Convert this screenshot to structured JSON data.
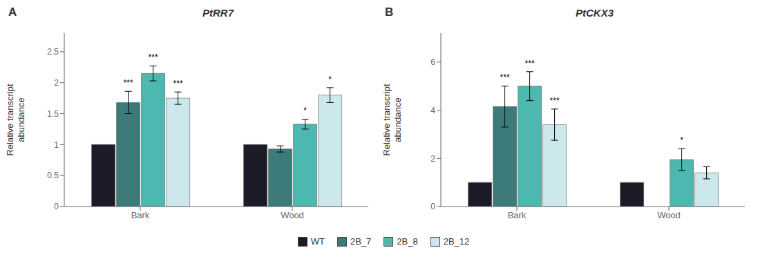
{
  "chart_data": [
    {
      "type": "bar",
      "panel_label": "A",
      "title": "PtRR7",
      "ylabel": "Relative transcript\nabundance",
      "categories": [
        "Bark",
        "Wood"
      ],
      "series": [
        {
          "name": "WT",
          "color": "#1c1c28",
          "values": [
            1.0,
            1.0
          ],
          "errors": [
            0.0,
            0.0
          ],
          "significance": [
            null,
            null
          ]
        },
        {
          "name": "2B_7",
          "color": "#3d7a7a",
          "values": [
            1.68,
            0.93
          ],
          "errors": [
            0.18,
            0.05
          ],
          "significance": [
            "***",
            null
          ]
        },
        {
          "name": "2B_8",
          "color": "#4db8b0",
          "values": [
            2.15,
            1.33
          ],
          "errors": [
            0.12,
            0.08
          ],
          "significance": [
            "***",
            "*"
          ]
        },
        {
          "name": "2B_12",
          "color": "#cce8ec",
          "values": [
            1.75,
            1.8
          ],
          "errors": [
            0.1,
            0.12
          ],
          "significance": [
            "***",
            "*"
          ]
        }
      ],
      "ylim": [
        0,
        2.8
      ],
      "yticks": [
        0,
        0.5,
        1,
        1.5,
        2,
        2.5
      ],
      "grid": false,
      "legend": "bottom"
    },
    {
      "type": "bar",
      "panel_label": "B",
      "title": "PtCKX3",
      "ylabel": "Relative transcript\nabundance",
      "categories": [
        "Bark",
        "Wood"
      ],
      "series": [
        {
          "name": "WT",
          "color": "#1c1c28",
          "values": [
            1.0,
            1.0
          ],
          "errors": [
            0.0,
            0.0
          ],
          "significance": [
            null,
            null
          ]
        },
        {
          "name": "2B_7",
          "color": "#3d7a7a",
          "values": [
            4.15,
            null
          ],
          "errors": [
            0.85,
            null
          ],
          "significance": [
            "***",
            null
          ]
        },
        {
          "name": "2B_8",
          "color": "#4db8b0",
          "values": [
            5.0,
            1.95
          ],
          "errors": [
            0.6,
            0.45
          ],
          "significance": [
            "***",
            "*"
          ]
        },
        {
          "name": "2B_12",
          "color": "#cce8ec",
          "values": [
            3.4,
            1.4
          ],
          "errors": [
            0.65,
            0.25
          ],
          "significance": [
            "***",
            null
          ]
        }
      ],
      "ylim": [
        0,
        7.2
      ],
      "yticks": [
        0,
        2,
        4,
        6
      ],
      "grid": false
    }
  ]
}
